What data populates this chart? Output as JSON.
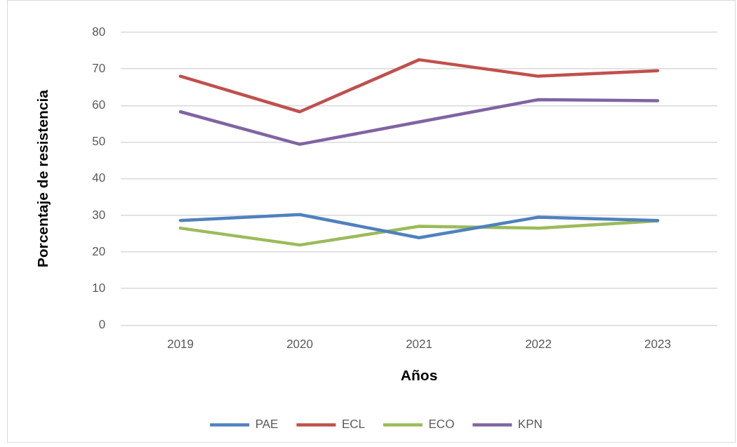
{
  "chart_data": {
    "type": "line",
    "xlabel": "Años",
    "ylabel": "Porcentaje de resistencia",
    "categories": [
      "2019",
      "2020",
      "2021",
      "2022",
      "2023"
    ],
    "series": [
      {
        "name": "PAE",
        "color": "#4f81bd",
        "values": [
          28.6,
          30.2,
          23.9,
          29.5,
          28.6
        ]
      },
      {
        "name": "ECL",
        "color": "#c0504d",
        "values": [
          68.0,
          58.3,
          72.5,
          68.0,
          69.5
        ]
      },
      {
        "name": "ECO",
        "color": "#9bbb59",
        "values": [
          26.5,
          21.9,
          27.0,
          26.5,
          28.5
        ]
      },
      {
        "name": "KPN",
        "color": "#8064a2",
        "values": [
          58.3,
          49.4,
          55.5,
          61.6,
          61.3
        ]
      }
    ],
    "ylim": [
      0,
      80
    ],
    "yticks": [
      0,
      10,
      20,
      30,
      40,
      50,
      60,
      70,
      80
    ],
    "grid": "y",
    "legend": "bottom"
  }
}
